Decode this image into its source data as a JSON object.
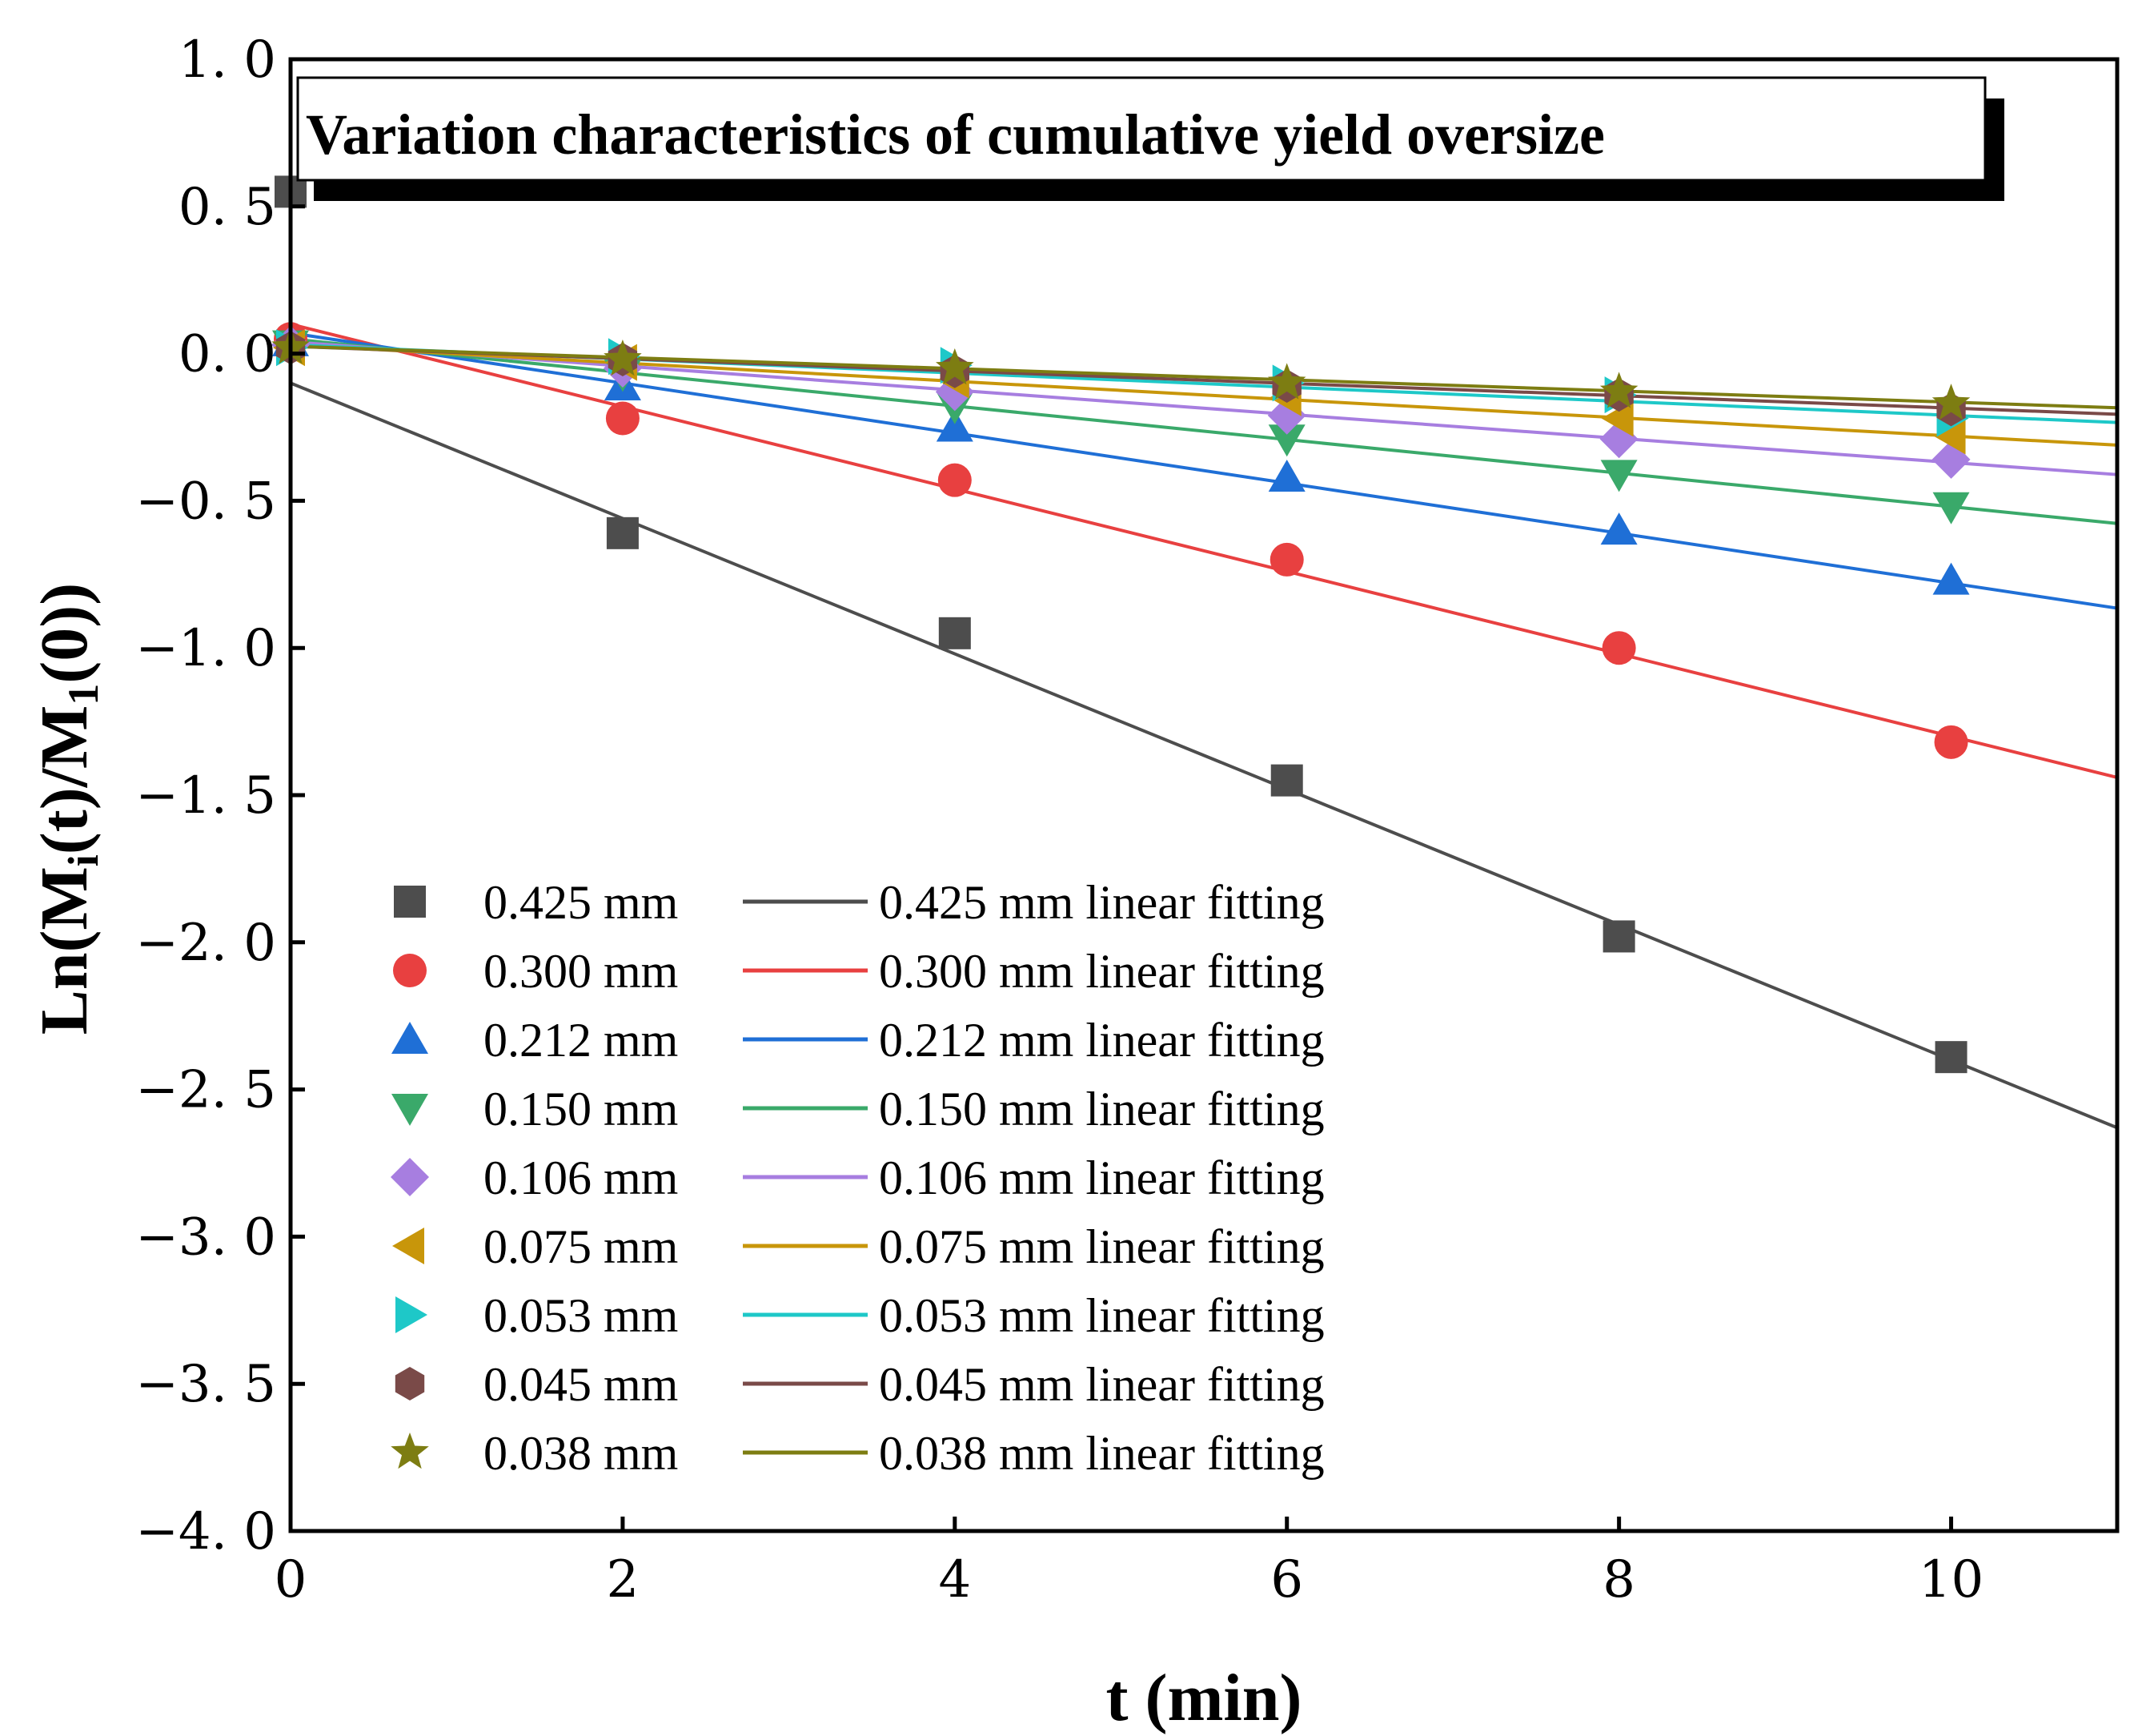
{
  "chart_data": {
    "type": "scatter",
    "title": "Variation characteristics of cumulative yield oversize",
    "xlabel": "t (min)",
    "ylabel": {
      "p1": "Ln(M",
      "s1": "i",
      "p2": "(t)/M",
      "s2": "1",
      "p3": "(0))"
    },
    "xlim": [
      0,
      11
    ],
    "ylim": [
      -4.0,
      1.0
    ],
    "xticks": [
      0,
      2,
      4,
      6,
      8,
      10
    ],
    "xtick_labels": [
      "0",
      "2",
      "4",
      "6",
      "8",
      "10"
    ],
    "yticks": [
      1.0,
      0.5,
      0.0,
      -0.5,
      -1.0,
      -1.5,
      -2.0,
      -2.5,
      -3.0,
      -3.5,
      -4.0
    ],
    "ytick_labels": [
      "1. 0",
      "0. 5",
      "0. 0",
      "−0. 5",
      "−1. 0",
      "−1. 5",
      "−2. 0",
      "−2. 5",
      "−3. 0",
      "−3. 5",
      "−4. 0"
    ],
    "grid": false,
    "legend_position": "bottom-left",
    "series": [
      {
        "name": "0.425 mm",
        "fit_name": "0.425 mm linear fitting",
        "marker": "square",
        "color": "#4d4d4d",
        "x": [
          0,
          2,
          4,
          6,
          8,
          10
        ],
        "y": [
          0.55,
          -0.61,
          -0.95,
          -1.45,
          -1.98,
          -2.39
        ],
        "fit": {
          "intercept": -0.1,
          "slope": -0.23
        }
      },
      {
        "name": "0.300 mm",
        "fit_name": "0.300 mm linear fitting",
        "marker": "circle",
        "color": "#e84040",
        "x": [
          0,
          2,
          4,
          6,
          8,
          10
        ],
        "y": [
          0.05,
          -0.22,
          -0.43,
          -0.7,
          -1.0,
          -1.32
        ],
        "fit": {
          "intercept": 0.1,
          "slope": -0.14
        }
      },
      {
        "name": "0.212 mm",
        "fit_name": "0.212 mm linear fitting",
        "marker": "triangle-up",
        "color": "#1f6fd6",
        "x": [
          0,
          2,
          4,
          6,
          8,
          10
        ],
        "y": [
          0.04,
          -0.11,
          -0.25,
          -0.42,
          -0.6,
          -0.77
        ],
        "fit": {
          "intercept": 0.07,
          "slope": -0.085
        }
      },
      {
        "name": "0.150 mm",
        "fit_name": "0.150 mm linear fitting",
        "marker": "triangle-down",
        "color": "#3aa96a",
        "x": [
          0,
          2,
          4,
          6,
          8,
          10
        ],
        "y": [
          0.03,
          -0.07,
          -0.18,
          -0.29,
          -0.41,
          -0.52
        ],
        "fit": {
          "intercept": 0.05,
          "slope": -0.057
        }
      },
      {
        "name": "0.106 mm",
        "fit_name": "0.106 mm linear fitting",
        "marker": "diamond",
        "color": "#a77ee0",
        "x": [
          0,
          2,
          4,
          6,
          8,
          10
        ],
        "y": [
          0.03,
          -0.05,
          -0.13,
          -0.21,
          -0.29,
          -0.36
        ],
        "fit": {
          "intercept": 0.04,
          "slope": -0.041
        }
      },
      {
        "name": "0.075 mm",
        "fit_name": "0.075 mm linear fitting",
        "marker": "triangle-left",
        "color": "#c8960a",
        "x": [
          0,
          2,
          4,
          6,
          8,
          10
        ],
        "y": [
          0.02,
          -0.03,
          -0.09,
          -0.15,
          -0.22,
          -0.28
        ],
        "fit": {
          "intercept": 0.03,
          "slope": -0.031
        }
      },
      {
        "name": "0.053 mm",
        "fit_name": "0.053 mm linear fitting",
        "marker": "triangle-right",
        "color": "#1ec8c8",
        "x": [
          0,
          2,
          4,
          6,
          8,
          10
        ],
        "y": [
          0.02,
          -0.01,
          -0.04,
          -0.1,
          -0.14,
          -0.22
        ],
        "fit": {
          "intercept": 0.03,
          "slope": -0.024
        }
      },
      {
        "name": "0.045 mm",
        "fit_name": "0.045 mm linear fitting",
        "marker": "hexagon",
        "color": "#7a4a48",
        "x": [
          0,
          2,
          4,
          6,
          8,
          10
        ],
        "y": [
          0.02,
          -0.02,
          -0.06,
          -0.11,
          -0.14,
          -0.19
        ],
        "fit": {
          "intercept": 0.025,
          "slope": -0.021
        }
      },
      {
        "name": "0.038 mm",
        "fit_name": "0.038 mm linear fitting",
        "marker": "star",
        "color": "#7d7d12",
        "x": [
          0,
          2,
          4,
          6,
          8,
          10
        ],
        "y": [
          0.02,
          -0.02,
          -0.05,
          -0.1,
          -0.13,
          -0.17
        ],
        "fit": {
          "intercept": 0.025,
          "slope": -0.019
        }
      }
    ]
  }
}
